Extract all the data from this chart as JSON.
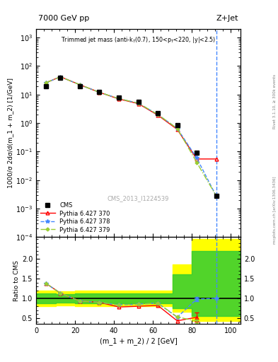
{
  "title_top": "7000 GeV pp",
  "title_right": "Z+Jet",
  "plot_title": "Trimmed jet mass (anti-k$_{T}$(0.7), 150<p$_{T}$<220, |y|<2.5)",
  "xlabel": "(m_1 + m_2) / 2 [GeV]",
  "ylabel_main": "1000/σ 2dσ/d(m_1 + m_2) [1/GeV]",
  "ylabel_ratio": "Ratio to CMS",
  "watermark": "CMS_2013_I1224539",
  "right_label": "mcplots.cern.ch [arXiv:1306.3436]",
  "right_label2": "Rivet 3.1.10, ≥ 300k events",
  "xlim": [
    0,
    105
  ],
  "ylim_main": [
    0.0001,
    2000
  ],
  "ylim_ratio": [
    0.35,
    2.55
  ],
  "xvals": [
    5,
    12.5,
    22.5,
    32.5,
    42.5,
    52.5,
    62.5,
    72.5,
    82.5,
    92.5
  ],
  "cms_y": [
    20.0,
    38.0,
    20.0,
    12.5,
    8.0,
    5.5,
    2.2,
    0.85,
    0.09,
    0.0028
  ],
  "py370_y": [
    26.0,
    42.0,
    22.0,
    12.0,
    7.0,
    4.8,
    1.9,
    0.6,
    0.055,
    0.055
  ],
  "py378_y": [
    26.0,
    42.0,
    22.0,
    12.0,
    7.2,
    5.0,
    2.0,
    0.65,
    0.06,
    0.0028
  ],
  "py379_y": [
    26.0,
    42.0,
    22.0,
    12.0,
    7.2,
    5.0,
    2.0,
    0.65,
    0.042,
    0.0028
  ],
  "vline_x": 92.5,
  "ratio_x": [
    5,
    12.5,
    22.5,
    32.5,
    42.5,
    52.5,
    62.5,
    72.5,
    82.5,
    92.5
  ],
  "ratio_370": [
    1.38,
    1.13,
    0.93,
    0.9,
    0.78,
    0.8,
    0.82,
    0.43,
    0.52,
    0.0
  ],
  "ratio_378": [
    1.38,
    1.13,
    0.93,
    0.9,
    0.83,
    0.85,
    0.88,
    0.52,
    0.98,
    1.0
  ],
  "ratio_379": [
    1.38,
    1.13,
    0.93,
    0.9,
    0.83,
    0.85,
    0.88,
    0.53,
    0.42,
    0.0
  ],
  "band_steps": [
    0,
    10,
    20,
    30,
    40,
    50,
    60,
    70,
    80,
    90,
    100,
    105
  ],
  "band_green_low": [
    0.88,
    0.9,
    0.88,
    0.88,
    0.88,
    0.88,
    0.88,
    0.75,
    0.55,
    0.55,
    0.55
  ],
  "band_green_high": [
    1.12,
    1.1,
    1.12,
    1.12,
    1.12,
    1.12,
    1.12,
    1.6,
    2.2,
    2.2,
    2.2
  ],
  "band_yellow_low": [
    0.8,
    0.82,
    0.8,
    0.8,
    0.8,
    0.8,
    0.8,
    0.65,
    0.42,
    0.42,
    0.42
  ],
  "band_yellow_high": [
    1.2,
    1.18,
    1.2,
    1.2,
    1.2,
    1.2,
    1.2,
    1.85,
    2.5,
    2.5,
    2.5
  ]
}
